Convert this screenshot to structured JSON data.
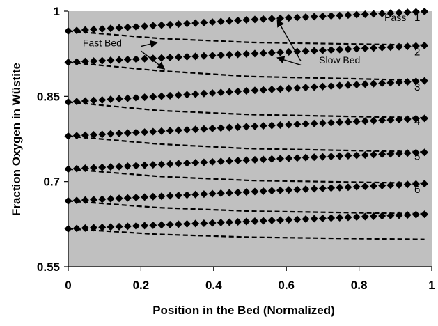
{
  "chart_data": {
    "type": "scatter",
    "xlabel": "Position in the Bed  (Normalized)",
    "ylabel": "Fraction Oxygen in Wüstite",
    "xlim": [
      0,
      1
    ],
    "ylim": [
      0.55,
      1
    ],
    "xticks": [
      "0",
      "0.2",
      "0.4",
      "0.6",
      "0.8",
      "1"
    ],
    "yticks": [
      "0.55",
      "0.7",
      "0.85",
      "1"
    ],
    "plot_background": "#c0c0c0",
    "grid": false,
    "series": [
      {
        "name": "Slow Bed",
        "style": "diamond-markers",
        "pass": 1,
        "x": [
          0,
          0.5,
          1
        ],
        "y": [
          0.965,
          0.985,
          1.0
        ]
      },
      {
        "name": "Fast Bed",
        "style": "dashed",
        "pass": 1,
        "x": [
          0,
          0.25,
          0.5,
          1
        ],
        "y": [
          0.965,
          0.952,
          0.945,
          0.94
        ]
      },
      {
        "name": "Slow Bed",
        "style": "diamond-markers",
        "pass": 2,
        "x": [
          0,
          0.5,
          1
        ],
        "y": [
          0.91,
          0.925,
          0.94
        ]
      },
      {
        "name": "Fast Bed",
        "style": "dashed",
        "pass": 2,
        "x": [
          0,
          0.25,
          0.5,
          1
        ],
        "y": [
          0.91,
          0.895,
          0.885,
          0.878
        ]
      },
      {
        "name": "Slow Bed",
        "style": "diamond-markers",
        "pass": 3,
        "x": [
          0,
          0.5,
          1
        ],
        "y": [
          0.84,
          0.86,
          0.878
        ]
      },
      {
        "name": "Fast Bed",
        "style": "dashed",
        "pass": 3,
        "x": [
          0,
          0.25,
          0.5,
          1
        ],
        "y": [
          0.84,
          0.825,
          0.818,
          0.812
        ]
      },
      {
        "name": "Slow Bed",
        "style": "diamond-markers",
        "pass": 4,
        "x": [
          0,
          0.5,
          1
        ],
        "y": [
          0.78,
          0.797,
          0.812
        ]
      },
      {
        "name": "Fast Bed",
        "style": "dashed",
        "pass": 4,
        "x": [
          0,
          0.25,
          0.5,
          1
        ],
        "y": [
          0.78,
          0.766,
          0.758,
          0.752
        ]
      },
      {
        "name": "Slow Bed",
        "style": "diamond-markers",
        "pass": 5,
        "x": [
          0,
          0.5,
          1
        ],
        "y": [
          0.722,
          0.738,
          0.752
        ]
      },
      {
        "name": "Fast Bed",
        "style": "dashed",
        "pass": 5,
        "x": [
          0,
          0.25,
          0.5,
          1
        ],
        "y": [
          0.722,
          0.709,
          0.702,
          0.697
        ]
      },
      {
        "name": "Slow Bed",
        "style": "diamond-markers",
        "pass": 6,
        "x": [
          0,
          0.5,
          1
        ],
        "y": [
          0.666,
          0.682,
          0.697
        ]
      },
      {
        "name": "Fast Bed",
        "style": "dashed",
        "pass": 6,
        "x": [
          0,
          0.25,
          0.5,
          1
        ],
        "y": [
          0.666,
          0.654,
          0.648,
          0.643
        ]
      },
      {
        "style": "diamond-markers",
        "x": [
          0,
          0.5,
          1
        ],
        "y": [
          0.617,
          0.63,
          0.643
        ]
      },
      {
        "style": "dashed",
        "x": [
          0,
          0.25,
          0.5,
          1
        ],
        "y": [
          0.617,
          0.607,
          0.602,
          0.598
        ]
      }
    ],
    "annotations": [
      {
        "text": "Pass",
        "x": 0.87,
        "y": 0.983
      },
      {
        "text": "Fast Bed",
        "x": 0.04,
        "y": 0.938
      },
      {
        "text": "Slow Bed",
        "x": 0.69,
        "y": 0.908
      }
    ],
    "pass_labels": [
      {
        "text": "1",
        "x": 0.96,
        "y": 0.983
      },
      {
        "text": "2",
        "x": 0.96,
        "y": 0.922
      },
      {
        "text": "3",
        "x": 0.96,
        "y": 0.86
      },
      {
        "text": "4",
        "x": 0.96,
        "y": 0.8
      },
      {
        "text": "5",
        "x": 0.96,
        "y": 0.738
      },
      {
        "text": "6",
        "x": 0.96,
        "y": 0.68
      }
    ],
    "arrows": [
      {
        "label": "Fast Bed",
        "from": [
          0.2,
          0.938
        ],
        "to": [
          0.245,
          0.945
        ]
      },
      {
        "label": "Fast Bed",
        "from": [
          0.2,
          0.93
        ],
        "to": [
          0.265,
          0.898
        ]
      },
      {
        "label": "Slow Bed",
        "from": [
          0.64,
          0.905
        ],
        "to": [
          0.575,
          0.918
        ]
      },
      {
        "label": "Slow Bed",
        "from": [
          0.64,
          0.912
        ],
        "to": [
          0.575,
          0.985
        ]
      }
    ]
  }
}
